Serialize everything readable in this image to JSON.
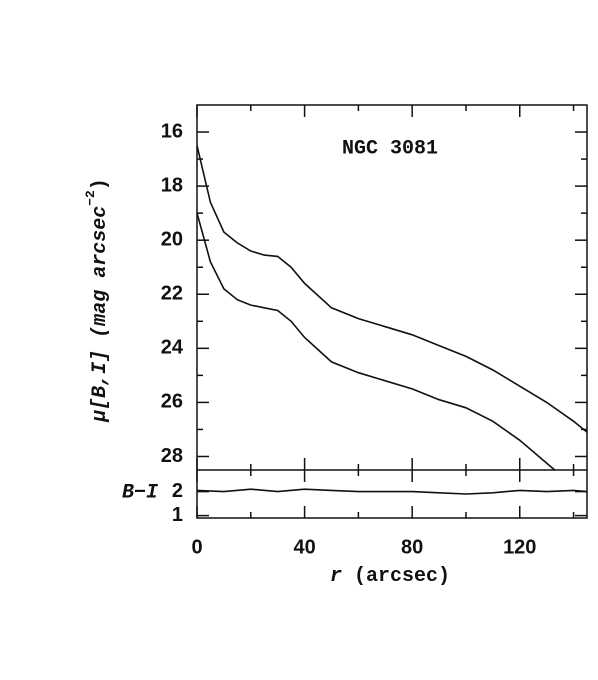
{
  "chart_data": [
    {
      "type": "line",
      "annotation": "NGC 3081",
      "y_label": "μ[B,I] (mag arcsec",
      "y_label_sup": "−2",
      "y_label_end": ")",
      "xlim": [
        0,
        145
      ],
      "xticks": [
        0,
        40,
        80,
        120
      ],
      "xminorticks": [
        20,
        60,
        100,
        140
      ],
      "ylim": [
        28.5,
        15
      ],
      "yticks": [
        16,
        18,
        20,
        22,
        24,
        26,
        28
      ],
      "yminorticks": [
        17,
        19,
        21,
        23,
        25,
        27
      ],
      "series": [
        {
          "color": "#111111",
          "x": [
            0,
            5,
            10,
            15,
            20,
            25,
            30,
            35,
            40,
            50,
            60,
            70,
            80,
            90,
            100,
            110,
            120,
            130,
            140,
            145
          ],
          "values": [
            16.5,
            18.6,
            19.7,
            20.1,
            20.4,
            20.55,
            20.6,
            21.0,
            21.6,
            22.5,
            22.9,
            23.2,
            23.5,
            23.9,
            24.3,
            24.8,
            25.4,
            26.0,
            26.7,
            27.1
          ]
        },
        {
          "color": "#111111",
          "x": [
            0,
            5,
            10,
            15,
            20,
            25,
            30,
            35,
            40,
            50,
            60,
            70,
            80,
            90,
            100,
            110,
            120,
            133
          ],
          "values": [
            19.0,
            20.8,
            21.8,
            22.2,
            22.4,
            22.5,
            22.6,
            23.0,
            23.6,
            24.5,
            24.9,
            25.2,
            25.5,
            25.9,
            26.2,
            26.7,
            27.4,
            28.5
          ]
        }
      ]
    },
    {
      "type": "line",
      "y_label": "B−I",
      "x_label_var": "r",
      "x_label_unit": "(arcsec)",
      "xlim": [
        0,
        145
      ],
      "xticks": [
        0,
        40,
        80,
        120
      ],
      "xminorticks": [
        20,
        60,
        100,
        140
      ],
      "ylim": [
        0.9,
        2.9
      ],
      "yticks": [
        1,
        2
      ],
      "series": [
        {
          "color": "#111111",
          "x": [
            0,
            10,
            20,
            30,
            40,
            50,
            60,
            70,
            80,
            90,
            100,
            110,
            120,
            130,
            140,
            145
          ],
          "values": [
            2.05,
            2.0,
            2.1,
            2.0,
            2.1,
            2.05,
            2.0,
            2.0,
            2.0,
            1.95,
            1.9,
            1.95,
            2.05,
            2.0,
            2.05,
            2.0
          ]
        }
      ]
    }
  ]
}
